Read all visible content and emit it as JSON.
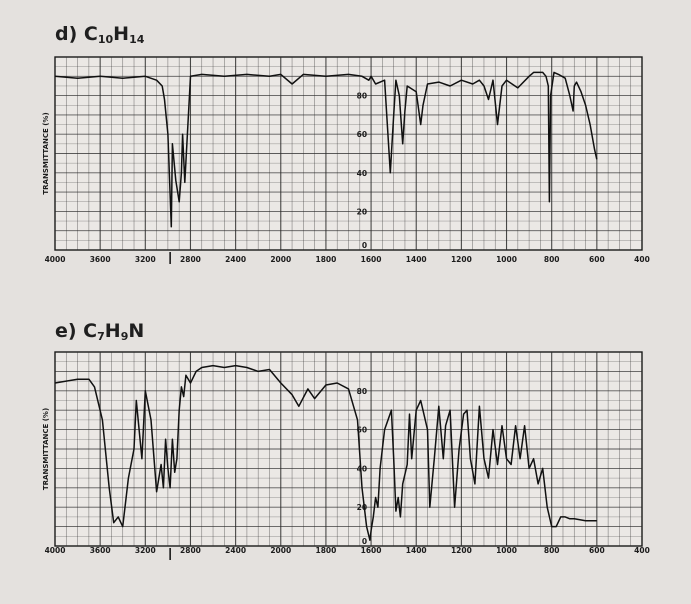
{
  "chart_data": [
    {
      "type": "line",
      "panel_label": "d) C",
      "formula_parts": [
        {
          "text": "d) C",
          "sub": false
        },
        {
          "text": "10",
          "sub": true
        },
        {
          "text": "H",
          "sub": false
        },
        {
          "text": "14",
          "sub": true
        }
      ],
      "ylabel": "TRANSMITTANCE (%)",
      "xlabel": "",
      "xlim": [
        4000,
        400
      ],
      "ylim": [
        0,
        100
      ],
      "x_ticks": [
        "4000",
        "3600",
        "3200",
        "2800",
        "2400",
        "2000",
        "1800",
        "1600",
        "1400",
        "1200",
        "1000",
        "800",
        "600",
        "400"
      ],
      "x_tick_values": [
        4000,
        3600,
        3200,
        2800,
        2400,
        2000,
        1800,
        1600,
        1400,
        1200,
        1000,
        800,
        600,
        400
      ],
      "y_ticks": [
        "80",
        "60",
        "40",
        "20",
        "0"
      ],
      "y_tick_values": [
        80,
        60,
        40,
        20,
        0
      ],
      "grid": true,
      "x": [
        4000,
        3800,
        3600,
        3400,
        3200,
        3100,
        3050,
        3030,
        3000,
        2970,
        2960,
        2930,
        2900,
        2880,
        2870,
        2850,
        2800,
        2700,
        2500,
        2300,
        2100,
        2000,
        1950,
        1900,
        1800,
        1700,
        1640,
        1610,
        1600,
        1580,
        1540,
        1515,
        1500,
        1490,
        1475,
        1460,
        1450,
        1440,
        1400,
        1380,
        1370,
        1350,
        1300,
        1250,
        1200,
        1150,
        1120,
        1100,
        1080,
        1060,
        1040,
        1020,
        1000,
        950,
        900,
        880,
        840,
        825,
        815,
        810,
        805,
        790,
        770,
        740,
        720,
        705,
        700,
        690,
        670,
        650,
        630,
        610,
        600
      ],
      "y": [
        90,
        89,
        90,
        89,
        90,
        88,
        85,
        78,
        60,
        12,
        55,
        36,
        25,
        40,
        60,
        35,
        90,
        91,
        90,
        91,
        90,
        91,
        86,
        91,
        90,
        91,
        90,
        88,
        90,
        86,
        88,
        40,
        70,
        88,
        80,
        55,
        72,
        85,
        82,
        65,
        75,
        86,
        87,
        85,
        88,
        86,
        88,
        85,
        78,
        88,
        65,
        85,
        88,
        84,
        90,
        92,
        92,
        90,
        85,
        25,
        80,
        92,
        91,
        89,
        80,
        72,
        85,
        87,
        82,
        75,
        65,
        52,
        47
      ]
    },
    {
      "type": "line",
      "panel_label": "e) C",
      "formula_parts": [
        {
          "text": "e) C",
          "sub": false
        },
        {
          "text": "7",
          "sub": true
        },
        {
          "text": "H",
          "sub": false
        },
        {
          "text": "9",
          "sub": true
        },
        {
          "text": "N",
          "sub": false
        }
      ],
      "ylabel": "TRANSMITTANCE (%)",
      "xlabel": "",
      "xlim": [
        4000,
        400
      ],
      "ylim": [
        0,
        100
      ],
      "x_ticks": [
        "4000",
        "3600",
        "3200",
        "2800",
        "2400",
        "2000",
        "1800",
        "1600",
        "1400",
        "1200",
        "1000",
        "800",
        "600",
        "400"
      ],
      "x_tick_values": [
        4000,
        3600,
        3200,
        2800,
        2400,
        2000,
        1800,
        1600,
        1400,
        1200,
        1000,
        800,
        600,
        400
      ],
      "y_ticks": [
        "80",
        "60",
        "40",
        "20",
        "0"
      ],
      "y_tick_values": [
        80,
        60,
        40,
        20,
        0
      ],
      "grid": true,
      "x": [
        4000,
        3800,
        3700,
        3650,
        3580,
        3520,
        3480,
        3440,
        3400,
        3380,
        3350,
        3300,
        3280,
        3230,
        3200,
        3150,
        3100,
        3060,
        3040,
        3020,
        3000,
        2980,
        2960,
        2940,
        2920,
        2900,
        2880,
        2860,
        2840,
        2800,
        2750,
        2700,
        2600,
        2500,
        2400,
        2300,
        2200,
        2100,
        2000,
        1950,
        1920,
        1880,
        1850,
        1800,
        1750,
        1700,
        1660,
        1640,
        1620,
        1605,
        1600,
        1590,
        1580,
        1570,
        1560,
        1540,
        1510,
        1500,
        1490,
        1480,
        1470,
        1460,
        1440,
        1430,
        1420,
        1400,
        1380,
        1350,
        1340,
        1320,
        1300,
        1280,
        1270,
        1250,
        1230,
        1210,
        1190,
        1175,
        1160,
        1140,
        1120,
        1100,
        1080,
        1060,
        1040,
        1020,
        1000,
        980,
        960,
        940,
        920,
        900,
        880,
        860,
        840,
        820,
        800,
        780,
        760,
        740,
        720,
        700,
        650,
        600
      ],
      "y": [
        84,
        86,
        86,
        82,
        65,
        30,
        12,
        15,
        10,
        20,
        35,
        50,
        75,
        45,
        80,
        65,
        28,
        42,
        30,
        55,
        40,
        30,
        55,
        38,
        45,
        70,
        82,
        77,
        88,
        84,
        90,
        92,
        93,
        92,
        93,
        92,
        90,
        91,
        84,
        78,
        72,
        81,
        76,
        83,
        84,
        81,
        65,
        30,
        10,
        3,
        8,
        15,
        25,
        20,
        40,
        60,
        70,
        45,
        18,
        25,
        15,
        32,
        42,
        68,
        45,
        70,
        75,
        60,
        20,
        45,
        72,
        45,
        62,
        70,
        20,
        50,
        68,
        70,
        45,
        32,
        72,
        45,
        35,
        60,
        42,
        62,
        45,
        42,
        62,
        45,
        62,
        40,
        45,
        32,
        40,
        20,
        10,
        10,
        15,
        15,
        14,
        14,
        13,
        13
      ]
    }
  ]
}
